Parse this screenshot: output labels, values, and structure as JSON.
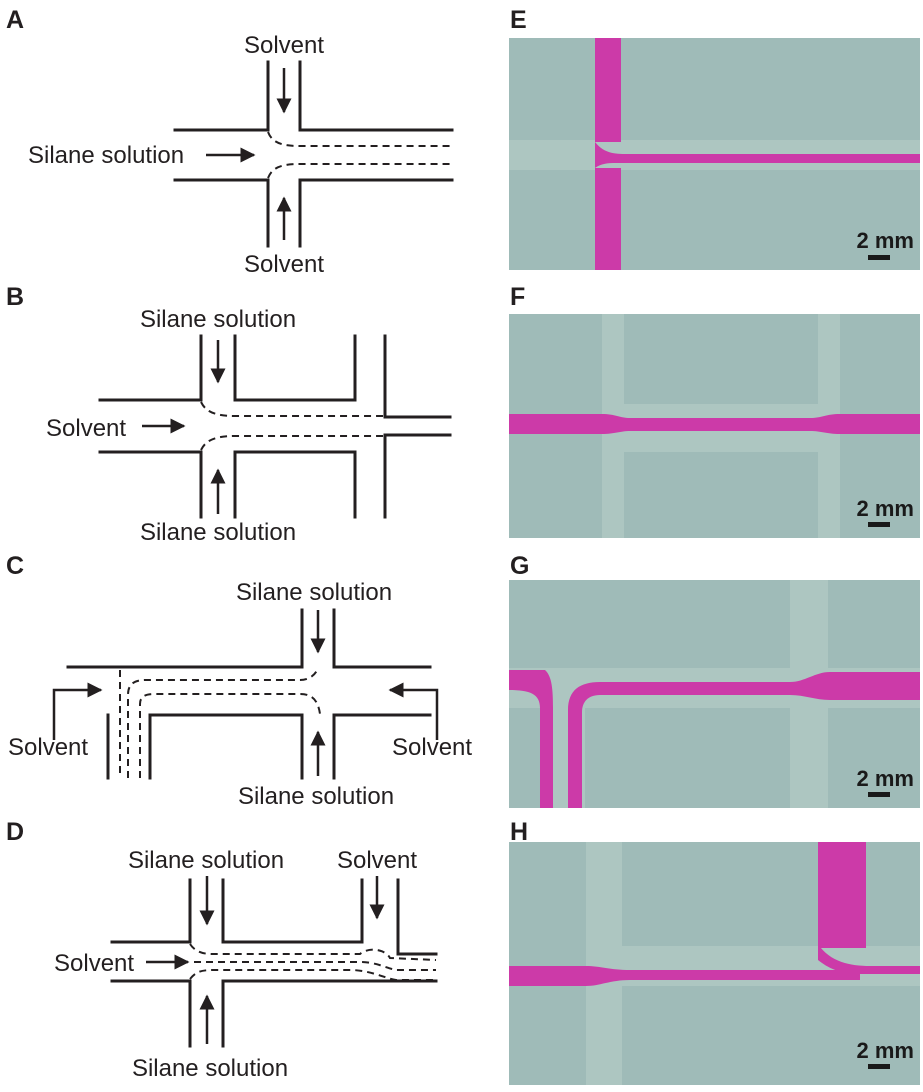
{
  "panels": {
    "A": {
      "letter": "A",
      "top": "Solvent",
      "left": "Silane solution",
      "bottom": "Solvent"
    },
    "B": {
      "letter": "B",
      "top": "Silane solution",
      "left": "Solvent",
      "bottom": "Silane solution"
    },
    "C": {
      "letter": "C",
      "top": "Silane solution",
      "left": "Solvent",
      "right": "Solvent",
      "bottom": "Silane solution"
    },
    "D": {
      "letter": "D",
      "top_left": "Silane solution",
      "top_right": "Solvent",
      "left": "Solvent",
      "bottom": "Silane solution"
    },
    "E": {
      "letter": "E",
      "scale": "2 mm"
    },
    "F": {
      "letter": "F",
      "scale": "2 mm"
    },
    "G": {
      "letter": "G",
      "scale": "2 mm"
    },
    "H": {
      "letter": "H",
      "scale": "2 mm"
    }
  },
  "colors": {
    "stream": "#cc3aa8",
    "photo_bg": "#9fbbb8",
    "channel": "#adc6c1",
    "ink": "#231f20"
  }
}
